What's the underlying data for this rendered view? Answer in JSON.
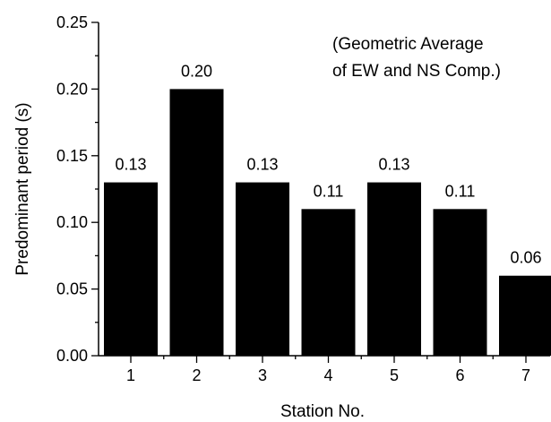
{
  "chart_data": {
    "type": "bar",
    "title": "",
    "xlabel": "Station No.",
    "ylabel": "Predominant period (s)",
    "categories": [
      "1",
      "2",
      "3",
      "4",
      "5",
      "6",
      "7"
    ],
    "values": [
      0.13,
      0.2,
      0.13,
      0.11,
      0.13,
      0.11,
      0.06
    ],
    "data_labels": [
      "0.13",
      "0.20",
      "0.13",
      "0.11",
      "0.13",
      "0.11",
      "0.06"
    ],
    "ylim": [
      0,
      0.25
    ],
    "yticks": [
      0.0,
      0.05,
      0.1,
      0.15,
      0.2,
      0.25
    ],
    "ytick_labels": [
      "0.00",
      "0.05",
      "0.10",
      "0.15",
      "0.20",
      "0.25"
    ],
    "annotation": [
      "(Geometric Average",
      "of EW and NS Comp.)"
    ],
    "bar_color": "#000000",
    "grid": false,
    "legend": "none"
  }
}
